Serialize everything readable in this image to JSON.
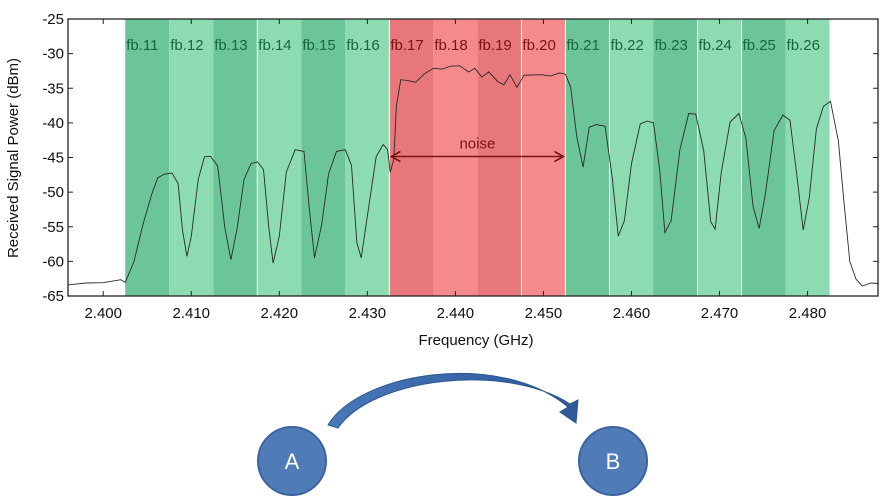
{
  "chart_data": {
    "type": "line",
    "title": "",
    "xlabel": "Frequency (GHz)",
    "ylabel": "Received Signal Power (dBm)",
    "xlim": [
      2.396,
      2.488
    ],
    "ylim": [
      -65,
      -25
    ],
    "x_ticks": [
      2.4,
      2.41,
      2.42,
      2.43,
      2.44,
      2.45,
      2.46,
      2.47,
      2.48
    ],
    "x_tick_labels": [
      "2.400",
      "2.410",
      "2.420",
      "2.430",
      "2.440",
      "2.450",
      "2.460",
      "2.470",
      "2.480"
    ],
    "y_ticks": [
      -65,
      -60,
      -55,
      -50,
      -45,
      -40,
      -35,
      -30,
      -25
    ],
    "y_tick_labels": [
      "-65",
      "-60",
      "-55",
      "-50",
      "-45",
      "-40",
      "-35",
      "-30",
      "-25"
    ],
    "grid": false,
    "bands": [
      {
        "label": "fb.11",
        "start": 2.4025,
        "end": 2.4075,
        "group": "green",
        "shade": "dark"
      },
      {
        "label": "fb.12",
        "start": 2.4075,
        "end": 2.4125,
        "group": "green",
        "shade": "light"
      },
      {
        "label": "fb.13",
        "start": 2.4125,
        "end": 2.4175,
        "group": "green",
        "shade": "dark"
      },
      {
        "label": "fb.14",
        "start": 2.4175,
        "end": 2.4225,
        "group": "green",
        "shade": "light"
      },
      {
        "label": "fb.15",
        "start": 2.4225,
        "end": 2.4275,
        "group": "green",
        "shade": "dark"
      },
      {
        "label": "fb.16",
        "start": 2.4275,
        "end": 2.4325,
        "group": "green",
        "shade": "light"
      },
      {
        "label": "fb.17",
        "start": 2.4325,
        "end": 2.4375,
        "group": "red",
        "shade": "dark"
      },
      {
        "label": "fb.18",
        "start": 2.4375,
        "end": 2.4425,
        "group": "red",
        "shade": "light"
      },
      {
        "label": "fb.19",
        "start": 2.4425,
        "end": 2.4475,
        "group": "red",
        "shade": "dark"
      },
      {
        "label": "fb.20",
        "start": 2.4475,
        "end": 2.4525,
        "group": "red",
        "shade": "light"
      },
      {
        "label": "fb.21",
        "start": 2.4525,
        "end": 2.4575,
        "group": "green",
        "shade": "dark"
      },
      {
        "label": "fb.22",
        "start": 2.4575,
        "end": 2.4625,
        "group": "green",
        "shade": "light"
      },
      {
        "label": "fb.23",
        "start": 2.4625,
        "end": 2.4675,
        "group": "green",
        "shade": "dark"
      },
      {
        "label": "fb.24",
        "start": 2.4675,
        "end": 2.4725,
        "group": "green",
        "shade": "light"
      },
      {
        "label": "fb.25",
        "start": 2.4725,
        "end": 2.4775,
        "group": "green",
        "shade": "dark"
      },
      {
        "label": "fb.26",
        "start": 2.4775,
        "end": 2.4825,
        "group": "green",
        "shade": "light"
      }
    ],
    "noise_annotation": {
      "label": "noise",
      "start": 2.4325,
      "end": 2.4525,
      "y": -45
    },
    "wifi_channel_peaks": [
      {
        "center": 2.407,
        "peak": -47.5
      },
      {
        "center": 2.412,
        "peak": -45
      },
      {
        "center": 2.417,
        "peak": -46
      },
      {
        "center": 2.422,
        "peak": -44
      },
      {
        "center": 2.427,
        "peak": -44
      },
      {
        "center": 2.432,
        "peak": -43
      },
      {
        "center": 2.457,
        "peak": -40
      },
      {
        "center": 2.462,
        "peak": -39.5
      },
      {
        "center": 2.467,
        "peak": -38.5
      },
      {
        "center": 2.472,
        "peak": -39
      },
      {
        "center": 2.477,
        "peak": -39
      },
      {
        "center": 2.482,
        "peak": -37.5
      }
    ],
    "series": [
      {
        "values": [
          [
            2.396,
            -63.4
          ],
          [
            2.398,
            -63.0
          ],
          [
            2.4,
            -63.2
          ],
          [
            2.402,
            -63.0
          ],
          [
            2.4025,
            -62.8
          ],
          [
            2.4035,
            -60.0
          ],
          [
            2.4045,
            -55.0
          ],
          [
            2.4055,
            -50.0
          ],
          [
            2.4062,
            -47.8
          ],
          [
            2.407,
            -47.5
          ],
          [
            2.4078,
            -47.6
          ],
          [
            2.4085,
            -48.5
          ],
          [
            2.409,
            -55.5
          ],
          [
            2.4095,
            -59.5
          ],
          [
            2.41,
            -56.0
          ],
          [
            2.4108,
            -48.0
          ],
          [
            2.4115,
            -45.0
          ],
          [
            2.4122,
            -45.2
          ],
          [
            2.413,
            -46.0
          ],
          [
            2.4138,
            -55.0
          ],
          [
            2.4145,
            -60.0
          ],
          [
            2.4152,
            -55.0
          ],
          [
            2.416,
            -48.0
          ],
          [
            2.4168,
            -46.0
          ],
          [
            2.4175,
            -46.0
          ],
          [
            2.4182,
            -46.5
          ],
          [
            2.4188,
            -55.0
          ],
          [
            2.4193,
            -60.5
          ],
          [
            2.42,
            -56.0
          ],
          [
            2.4208,
            -47.0
          ],
          [
            2.4218,
            -44.0
          ],
          [
            2.4228,
            -44.5
          ],
          [
            2.4234,
            -52.0
          ],
          [
            2.424,
            -59.5
          ],
          [
            2.4248,
            -55.0
          ],
          [
            2.4256,
            -47.0
          ],
          [
            2.4265,
            -44.0
          ],
          [
            2.4275,
            -44.0
          ],
          [
            2.4282,
            -46.5
          ],
          [
            2.4288,
            -57.0
          ],
          [
            2.4293,
            -59.5
          ],
          [
            2.4302,
            -52.0
          ],
          [
            2.431,
            -44.5
          ],
          [
            2.4318,
            -43.0
          ],
          [
            2.4323,
            -44.0
          ],
          [
            2.4326,
            -47.5
          ],
          [
            2.433,
            -45.0
          ],
          [
            2.4333,
            -37.5
          ],
          [
            2.4338,
            -34.0
          ],
          [
            2.4345,
            -33.5
          ],
          [
            2.4355,
            -34.0
          ],
          [
            2.4365,
            -33.0
          ],
          [
            2.4375,
            -32.5
          ],
          [
            2.4385,
            -32.0
          ],
          [
            2.4395,
            -31.8
          ],
          [
            2.4405,
            -32.0
          ],
          [
            2.4415,
            -32.3
          ],
          [
            2.4422,
            -32.0
          ],
          [
            2.443,
            -33.5
          ],
          [
            2.4438,
            -33.0
          ],
          [
            2.4448,
            -33.8
          ],
          [
            2.4455,
            -34.5
          ],
          [
            2.4462,
            -33.3
          ],
          [
            2.447,
            -34.5
          ],
          [
            2.4478,
            -33.0
          ],
          [
            2.4488,
            -33.2
          ],
          [
            2.4498,
            -33.4
          ],
          [
            2.4508,
            -33.0
          ],
          [
            2.4518,
            -32.8
          ],
          [
            2.4525,
            -33.2
          ],
          [
            2.4531,
            -34.5
          ],
          [
            2.4538,
            -42.0
          ],
          [
            2.4545,
            -46.5
          ],
          [
            2.4552,
            -41.0
          ],
          [
            2.456,
            -40.0
          ],
          [
            2.457,
            -40.5
          ],
          [
            2.4578,
            -48.0
          ],
          [
            2.4585,
            -56.0
          ],
          [
            2.4592,
            -54.0
          ],
          [
            2.46,
            -46.0
          ],
          [
            2.461,
            -40.5
          ],
          [
            2.4618,
            -39.5
          ],
          [
            2.4625,
            -40.0
          ],
          [
            2.4632,
            -47.0
          ],
          [
            2.4638,
            -55.5
          ],
          [
            2.4645,
            -54.0
          ],
          [
            2.4655,
            -44.0
          ],
          [
            2.4665,
            -39.0
          ],
          [
            2.4673,
            -38.5
          ],
          [
            2.4682,
            -44.0
          ],
          [
            2.469,
            -54.5
          ],
          [
            2.4695,
            -55.0
          ],
          [
            2.4702,
            -47.0
          ],
          [
            2.4712,
            -40.0
          ],
          [
            2.4722,
            -39.0
          ],
          [
            2.473,
            -42.0
          ],
          [
            2.4738,
            -52.0
          ],
          [
            2.4745,
            -55.5
          ],
          [
            2.4752,
            -50.0
          ],
          [
            2.4762,
            -41.0
          ],
          [
            2.4772,
            -39.0
          ],
          [
            2.478,
            -40.0
          ],
          [
            2.4788,
            -47.5
          ],
          [
            2.4795,
            -55.5
          ],
          [
            2.4802,
            -51.0
          ],
          [
            2.481,
            -40.5
          ],
          [
            2.4818,
            -37.5
          ],
          [
            2.4826,
            -37.0
          ],
          [
            2.4835,
            -43.0
          ],
          [
            2.4842,
            -52.0
          ],
          [
            2.4848,
            -60.0
          ],
          [
            2.4855,
            -62.8
          ],
          [
            2.4862,
            -63.2
          ],
          [
            2.4872,
            -63.0
          ],
          [
            2.488,
            -63.2
          ]
        ]
      }
    ]
  },
  "diagram": {
    "node_a_label": "A",
    "node_b_label": "B"
  },
  "colors": {
    "green_dark": "#6cc598",
    "green_light": "#8ddcb1",
    "red_dark": "#e8777b",
    "red_light": "#f48a8c",
    "green_label": "#17683c",
    "red_label": "#7a1414",
    "trace": "#2a2a2a",
    "node_fill": "#4f7bb6",
    "node_stroke": "#3d63a0",
    "arrow_fill": "#3a67a8"
  }
}
